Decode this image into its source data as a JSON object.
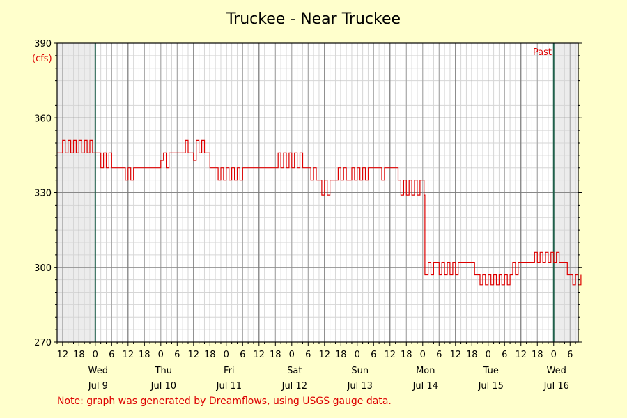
{
  "chart_data": {
    "type": "line",
    "title": "Truckee - Near Truckee",
    "ylabel_unit": "(cfs)",
    "ylim": [
      270,
      390
    ],
    "yticks": [
      270,
      300,
      330,
      360,
      390
    ],
    "xlim_hours": [
      -14,
      177
    ],
    "now_label": "Past",
    "hour_tick_labels": [
      "6",
      "12",
      "18",
      "0"
    ],
    "days": [
      {
        "weekday": "Wed",
        "date": "Jul 9"
      },
      {
        "weekday": "Thu",
        "date": "Jul 10"
      },
      {
        "weekday": "Fri",
        "date": "Jul 11"
      },
      {
        "weekday": "Sat",
        "date": "Jul 12"
      },
      {
        "weekday": "Sun",
        "date": "Jul 13"
      },
      {
        "weekday": "Mon",
        "date": "Jul 14"
      },
      {
        "weekday": "Tue",
        "date": "Jul 15"
      },
      {
        "weekday": "Wed",
        "date": "Jul 16"
      }
    ],
    "series": [
      {
        "color": "#dd0000",
        "points": [
          [
            -14,
            346
          ],
          [
            -13,
            346
          ],
          [
            -12,
            351
          ],
          [
            -11,
            346
          ],
          [
            -10,
            351
          ],
          [
            -9,
            346
          ],
          [
            -8,
            351
          ],
          [
            -7,
            346
          ],
          [
            -6,
            351
          ],
          [
            -5,
            346
          ],
          [
            -4,
            351
          ],
          [
            -3,
            346
          ],
          [
            -2,
            351
          ],
          [
            -1,
            346
          ],
          [
            0,
            346
          ],
          [
            1,
            346
          ],
          [
            2,
            340
          ],
          [
            3,
            346
          ],
          [
            4,
            340
          ],
          [
            5,
            346
          ],
          [
            6,
            340
          ],
          [
            8,
            340
          ],
          [
            10,
            340
          ],
          [
            11,
            335
          ],
          [
            12,
            340
          ],
          [
            13,
            335
          ],
          [
            14,
            340
          ],
          [
            20,
            340
          ],
          [
            23,
            340
          ],
          [
            24,
            343
          ],
          [
            25,
            346
          ],
          [
            26,
            340
          ],
          [
            27,
            346
          ],
          [
            28,
            346
          ],
          [
            32,
            346
          ],
          [
            33,
            351
          ],
          [
            34,
            346
          ],
          [
            36,
            343
          ],
          [
            37,
            351
          ],
          [
            38,
            346
          ],
          [
            39,
            351
          ],
          [
            40,
            346
          ],
          [
            42,
            340
          ],
          [
            44,
            340
          ],
          [
            45,
            335
          ],
          [
            46,
            340
          ],
          [
            47,
            335
          ],
          [
            48,
            340
          ],
          [
            49,
            335
          ],
          [
            50,
            340
          ],
          [
            51,
            335
          ],
          [
            52,
            340
          ],
          [
            53,
            335
          ],
          [
            54,
            340
          ],
          [
            66,
            340
          ],
          [
            67,
            346
          ],
          [
            68,
            340
          ],
          [
            69,
            346
          ],
          [
            70,
            340
          ],
          [
            71,
            346
          ],
          [
            72,
            340
          ],
          [
            73,
            346
          ],
          [
            74,
            340
          ],
          [
            75,
            346
          ],
          [
            76,
            340
          ],
          [
            78,
            340
          ],
          [
            79,
            335
          ],
          [
            80,
            340
          ],
          [
            81,
            335
          ],
          [
            82,
            335
          ],
          [
            83,
            329
          ],
          [
            84,
            335
          ],
          [
            85,
            329
          ],
          [
            86,
            335
          ],
          [
            88,
            335
          ],
          [
            89,
            340
          ],
          [
            90,
            335
          ],
          [
            91,
            340
          ],
          [
            92,
            335
          ],
          [
            94,
            340
          ],
          [
            95,
            335
          ],
          [
            96,
            340
          ],
          [
            97,
            335
          ],
          [
            98,
            340
          ],
          [
            99,
            335
          ],
          [
            100,
            340
          ],
          [
            104,
            340
          ],
          [
            105,
            335
          ],
          [
            106,
            340
          ],
          [
            110,
            340
          ],
          [
            111,
            335
          ],
          [
            112,
            329
          ],
          [
            113,
            335
          ],
          [
            114,
            329
          ],
          [
            115,
            335
          ],
          [
            116,
            329
          ],
          [
            117,
            335
          ],
          [
            118,
            329
          ],
          [
            119,
            335
          ],
          [
            120,
            335
          ],
          [
            120.5,
            329
          ],
          [
            120.8,
            297
          ],
          [
            121,
            297
          ],
          [
            122,
            302
          ],
          [
            123,
            297
          ],
          [
            124,
            302
          ],
          [
            126,
            297
          ],
          [
            127,
            302
          ],
          [
            128,
            297
          ],
          [
            129,
            302
          ],
          [
            130,
            297
          ],
          [
            131,
            302
          ],
          [
            132,
            297
          ],
          [
            133,
            302
          ],
          [
            138,
            302
          ],
          [
            139,
            297
          ],
          [
            140,
            297
          ],
          [
            141,
            293
          ],
          [
            142,
            297
          ],
          [
            143,
            293
          ],
          [
            144,
            297
          ],
          [
            145,
            293
          ],
          [
            146,
            297
          ],
          [
            147,
            293
          ],
          [
            148,
            297
          ],
          [
            149,
            293
          ],
          [
            150,
            297
          ],
          [
            151,
            293
          ],
          [
            152,
            297
          ],
          [
            153,
            302
          ],
          [
            154,
            297
          ],
          [
            155,
            302
          ],
          [
            160,
            302
          ],
          [
            161,
            306
          ],
          [
            162,
            302
          ],
          [
            163,
            306
          ],
          [
            164,
            302
          ],
          [
            165,
            306
          ],
          [
            166,
            302
          ],
          [
            167,
            306
          ],
          [
            168,
            302
          ],
          [
            169,
            306
          ],
          [
            170,
            302
          ],
          [
            172,
            302
          ],
          [
            173,
            297
          ],
          [
            174,
            297
          ],
          [
            175,
            293
          ],
          [
            176,
            297
          ],
          [
            177,
            293
          ],
          [
            178,
            297
          ]
        ]
      }
    ]
  },
  "footer_note": "Note: graph was generated by Dreamflows, using USGS gauge data."
}
